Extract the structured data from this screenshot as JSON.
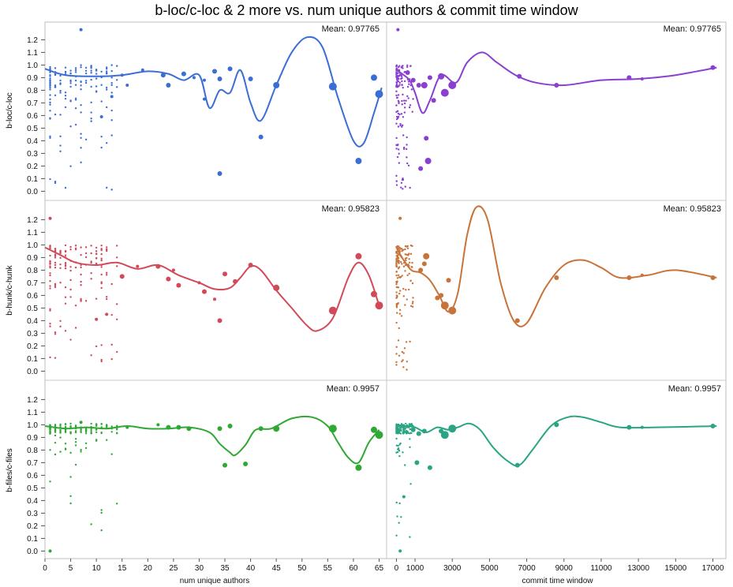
{
  "chart_data": {
    "type": "scatter",
    "title": "b-loc/c-loc & 2 more vs. num unique authors & commit time window",
    "x_axes": [
      {
        "label": "num unique authors",
        "range": [
          0,
          66
        ],
        "ticks": [
          0,
          5,
          10,
          15,
          20,
          25,
          30,
          35,
          40,
          45,
          50,
          55,
          60,
          65
        ]
      },
      {
        "label": "commit time window",
        "range": [
          -400,
          17700
        ],
        "ticks": [
          0,
          1000,
          3000,
          5000,
          7000,
          9000,
          11000,
          13000,
          15000,
          17000
        ]
      }
    ],
    "rows": [
      {
        "ylabel": "b-loc/c-loc",
        "ylim": [
          -0.06,
          1.34
        ],
        "yticks": [
          "0.0",
          "0.1",
          "0.2",
          "0.3",
          "0.4",
          "0.5",
          "0.6",
          "0.7",
          "0.8",
          "0.9",
          "1.0",
          "1.1",
          "1.2"
        ],
        "mean_text": "Mean: 0.97765",
        "colors": [
          "#3b6ed4",
          "#8a3fd1"
        ],
        "left_points": [
          [
            7,
            1.28,
            2
          ],
          [
            34,
            0.14,
            3
          ],
          [
            42,
            0.43,
            3
          ],
          [
            45,
            0.84,
            4
          ],
          [
            56,
            0.83,
            5
          ],
          [
            61,
            0.24,
            4
          ],
          [
            64,
            0.9,
            4
          ],
          [
            65,
            0.77,
            5
          ],
          [
            31,
            0.73,
            2
          ],
          [
            33,
            0.95,
            3
          ],
          [
            34,
            0.89,
            3
          ],
          [
            36,
            0.97,
            3
          ],
          [
            40,
            0.89,
            3
          ],
          [
            23,
            0.92,
            3
          ],
          [
            24,
            0.84,
            3
          ],
          [
            27,
            0.93,
            3
          ],
          [
            29,
            0.9,
            2
          ],
          [
            31,
            0.88,
            2
          ],
          [
            11,
            0.59,
            2
          ],
          [
            16,
            0.84,
            2
          ],
          [
            15,
            0.92,
            2
          ],
          [
            13,
            0.75,
            2
          ],
          [
            19,
            0.96,
            2
          ]
        ],
        "left_fit": [
          [
            0,
            0.97
          ],
          [
            4,
            0.92
          ],
          [
            10,
            0.91
          ],
          [
            15,
            0.92
          ],
          [
            20,
            0.95
          ],
          [
            24,
            0.93
          ],
          [
            27,
            0.88
          ],
          [
            30,
            0.92
          ],
          [
            32,
            0.66
          ],
          [
            34,
            0.8
          ],
          [
            36,
            0.78
          ],
          [
            38,
            0.96
          ],
          [
            40,
            0.7
          ],
          [
            42,
            0.56
          ],
          [
            45,
            0.84
          ],
          [
            48,
            1.1
          ],
          [
            51,
            1.22
          ],
          [
            54,
            1.14
          ],
          [
            57,
            0.74
          ],
          [
            60,
            0.4
          ],
          [
            62,
            0.38
          ],
          [
            64,
            0.62
          ],
          [
            65.5,
            0.82
          ]
        ],
        "right_points": [
          [
            80,
            1.28,
            2
          ],
          [
            2400,
            0.91,
            4
          ],
          [
            3000,
            0.84,
            5
          ],
          [
            2600,
            0.78,
            5
          ],
          [
            1500,
            0.84,
            4
          ],
          [
            1700,
            0.24,
            4
          ],
          [
            1600,
            0.42,
            3
          ],
          [
            1300,
            0.18,
            3
          ],
          [
            6600,
            0.91,
            3
          ],
          [
            8600,
            0.84,
            3
          ],
          [
            12500,
            0.9,
            3
          ],
          [
            13200,
            0.89,
            2
          ],
          [
            17000,
            0.98,
            3
          ],
          [
            600,
            0.94,
            3
          ],
          [
            900,
            0.88,
            3
          ],
          [
            1200,
            0.84,
            3
          ],
          [
            1800,
            0.9,
            3
          ],
          [
            2000,
            0.72,
            3
          ]
        ],
        "right_fit": [
          [
            0,
            0.96
          ],
          [
            300,
            0.93
          ],
          [
            700,
            0.88
          ],
          [
            1000,
            0.78
          ],
          [
            1400,
            0.62
          ],
          [
            1800,
            0.72
          ],
          [
            2400,
            0.92
          ],
          [
            3200,
            0.86
          ],
          [
            3800,
            1.02
          ],
          [
            4600,
            1.1
          ],
          [
            5400,
            1.02
          ],
          [
            6400,
            0.92
          ],
          [
            7500,
            0.86
          ],
          [
            9000,
            0.84
          ],
          [
            11000,
            0.88
          ],
          [
            13000,
            0.89
          ],
          [
            15000,
            0.92
          ],
          [
            17200,
            0.98
          ]
        ]
      },
      {
        "ylabel": "b-hunk/c-hunk",
        "ylim": [
          -0.06,
          1.34
        ],
        "yticks": [
          "0.0",
          "0.1",
          "0.2",
          "0.3",
          "0.4",
          "0.5",
          "0.6",
          "0.7",
          "0.8",
          "0.9",
          "1.0",
          "1.1",
          "1.2"
        ],
        "mean_text": "Mean: 0.95823",
        "colors": [
          "#d14a5a",
          "#c8733a"
        ],
        "left_points": [
          [
            34,
            0.4,
            3
          ],
          [
            35,
            0.77,
            3
          ],
          [
            31,
            0.63,
            3
          ],
          [
            33,
            0.57,
            2
          ],
          [
            37,
            0.71,
            3
          ],
          [
            40,
            0.84,
            3
          ],
          [
            45,
            0.66,
            4
          ],
          [
            56,
            0.48,
            5
          ],
          [
            61,
            0.91,
            4
          ],
          [
            64,
            0.61,
            4
          ],
          [
            65,
            0.52,
            5
          ],
          [
            26,
            0.68,
            3
          ],
          [
            24,
            0.73,
            3
          ],
          [
            22,
            0.83,
            3
          ],
          [
            18,
            0.83,
            2
          ],
          [
            15,
            0.75,
            3
          ],
          [
            12,
            0.45,
            2
          ],
          [
            10,
            0.41,
            2
          ],
          [
            1,
            1.21,
            2
          ],
          [
            30,
            0.7,
            2
          ],
          [
            25,
            0.8,
            2
          ]
        ],
        "left_fit": [
          [
            0,
            0.98
          ],
          [
            3,
            0.92
          ],
          [
            6,
            0.86
          ],
          [
            10,
            0.84
          ],
          [
            14,
            0.86
          ],
          [
            18,
            0.81
          ],
          [
            22,
            0.84
          ],
          [
            26,
            0.76
          ],
          [
            30,
            0.7
          ],
          [
            33,
            0.65
          ],
          [
            36,
            0.66
          ],
          [
            38,
            0.74
          ],
          [
            40,
            0.83
          ],
          [
            42,
            0.8
          ],
          [
            45,
            0.64
          ],
          [
            48,
            0.5
          ],
          [
            51,
            0.36
          ],
          [
            53,
            0.32
          ],
          [
            56,
            0.42
          ],
          [
            59,
            0.74
          ],
          [
            61,
            0.86
          ],
          [
            63,
            0.76
          ],
          [
            65,
            0.52
          ]
        ],
        "right_points": [
          [
            200,
            1.21,
            2
          ],
          [
            2400,
            0.6,
            3
          ],
          [
            2600,
            0.52,
            5
          ],
          [
            3000,
            0.48,
            5
          ],
          [
            1600,
            0.91,
            4
          ],
          [
            1500,
            0.85,
            3
          ],
          [
            1300,
            0.8,
            3
          ],
          [
            2800,
            0.72,
            3
          ],
          [
            6500,
            0.4,
            3
          ],
          [
            8600,
            0.74,
            3
          ],
          [
            12500,
            0.74,
            3
          ],
          [
            13200,
            0.76,
            2
          ],
          [
            17000,
            0.74,
            3
          ],
          [
            2200,
            0.58,
            3
          ]
        ],
        "right_fit": [
          [
            0,
            0.98
          ],
          [
            300,
            0.9
          ],
          [
            800,
            0.8
          ],
          [
            1300,
            0.78
          ],
          [
            1800,
            0.72
          ],
          [
            2300,
            0.6
          ],
          [
            2800,
            0.47
          ],
          [
            3300,
            0.62
          ],
          [
            3800,
            1.08
          ],
          [
            4300,
            1.3
          ],
          [
            4900,
            1.2
          ],
          [
            5600,
            0.7
          ],
          [
            6300,
            0.4
          ],
          [
            7000,
            0.38
          ],
          [
            8000,
            0.66
          ],
          [
            9000,
            0.84
          ],
          [
            10000,
            0.88
          ],
          [
            11000,
            0.82
          ],
          [
            12000,
            0.74
          ],
          [
            13500,
            0.76
          ],
          [
            15000,
            0.8
          ],
          [
            17200,
            0.74
          ]
        ]
      },
      {
        "ylabel": "b-files/c-files",
        "ylim": [
          -0.06,
          1.34
        ],
        "yticks": [
          "0.0",
          "0.1",
          "0.2",
          "0.3",
          "0.4",
          "0.5",
          "0.6",
          "0.7",
          "0.8",
          "0.9",
          "1.0",
          "1.1",
          "1.2"
        ],
        "mean_text": "Mean: 0.9957",
        "colors": [
          "#2fa834",
          "#2aa584"
        ],
        "left_points": [
          [
            35,
            0.68,
            3
          ],
          [
            39,
            0.69,
            3
          ],
          [
            36,
            0.99,
            3
          ],
          [
            34,
            0.97,
            3
          ],
          [
            42,
            0.97,
            3
          ],
          [
            45,
            0.97,
            4
          ],
          [
            56,
            0.97,
            5
          ],
          [
            61,
            0.66,
            4
          ],
          [
            64,
            0.96,
            4
          ],
          [
            65,
            0.92,
            5
          ],
          [
            26,
            0.98,
            3
          ],
          [
            28,
            0.97,
            3
          ],
          [
            24,
            0.98,
            3
          ],
          [
            22,
            1.0,
            2
          ],
          [
            16,
            0.98,
            2
          ],
          [
            7,
            1.02,
            2
          ],
          [
            1,
            0.0,
            2
          ]
        ],
        "left_fit": [
          [
            0,
            0.99
          ],
          [
            4,
            0.97
          ],
          [
            8,
            0.98
          ],
          [
            12,
            0.97
          ],
          [
            16,
            0.99
          ],
          [
            20,
            0.97
          ],
          [
            24,
            0.97
          ],
          [
            28,
            0.98
          ],
          [
            32,
            0.94
          ],
          [
            34,
            0.85
          ],
          [
            36,
            0.78
          ],
          [
            37,
            0.76
          ],
          [
            39,
            0.84
          ],
          [
            41,
            0.96
          ],
          [
            44,
            0.97
          ],
          [
            48,
            1.05
          ],
          [
            52,
            1.06
          ],
          [
            55,
            0.99
          ],
          [
            57,
            0.86
          ],
          [
            59,
            0.74
          ],
          [
            61,
            0.7
          ],
          [
            63,
            0.86
          ],
          [
            65,
            0.96
          ]
        ],
        "right_points": [
          [
            900,
            0.96,
            3
          ],
          [
            1200,
            0.93,
            3
          ],
          [
            1500,
            0.95,
            3
          ],
          [
            1800,
            0.66,
            3
          ],
          [
            1100,
            0.7,
            3
          ],
          [
            2600,
            0.92,
            5
          ],
          [
            2400,
            0.95,
            3
          ],
          [
            3000,
            0.97,
            5
          ],
          [
            6500,
            0.68,
            3
          ],
          [
            8600,
            1.0,
            3
          ],
          [
            12500,
            0.98,
            3
          ],
          [
            13200,
            0.98,
            2
          ],
          [
            17000,
            0.99,
            3
          ],
          [
            200,
            0.0,
            2
          ],
          [
            400,
            0.43,
            2
          ]
        ],
        "right_fit": [
          [
            0,
            0.99
          ],
          [
            500,
            0.99
          ],
          [
            1000,
            0.98
          ],
          [
            1600,
            0.94
          ],
          [
            2200,
            0.98
          ],
          [
            2800,
            0.96
          ],
          [
            3300,
            0.98
          ],
          [
            3900,
            1.01
          ],
          [
            4500,
            0.96
          ],
          [
            5200,
            0.82
          ],
          [
            6000,
            0.71
          ],
          [
            6600,
            0.68
          ],
          [
            7300,
            0.8
          ],
          [
            8300,
            0.99
          ],
          [
            9200,
            1.06
          ],
          [
            10000,
            1.06
          ],
          [
            11000,
            1.02
          ],
          [
            12000,
            0.98
          ],
          [
            14000,
            0.98
          ],
          [
            17200,
            0.99
          ]
        ]
      }
    ]
  }
}
